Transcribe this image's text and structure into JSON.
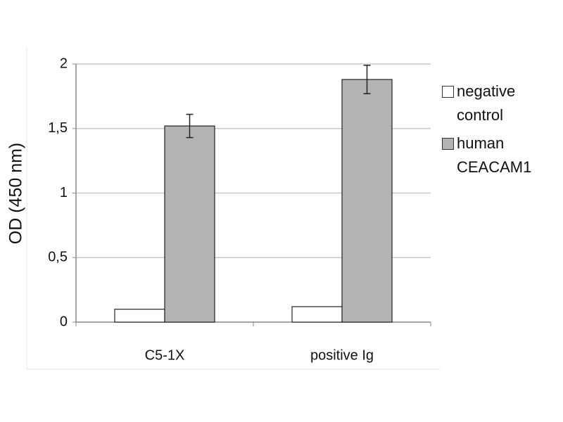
{
  "chart_data": {
    "type": "bar",
    "y_label": "OD (450 nm)",
    "categories": [
      "C5-1X",
      "positive Ig"
    ],
    "series": [
      {
        "name": "negative control",
        "color": "#ffffff",
        "values": [
          0.1,
          0.12
        ]
      },
      {
        "name": "human CEACAM1",
        "color": "#b3b3b3",
        "values": [
          1.52,
          1.88
        ],
        "errors": [
          0.09,
          0.11
        ]
      }
    ],
    "ylim": [
      0,
      2
    ],
    "yticks": [
      0,
      {
        "value": 0.5,
        "label": "0,5"
      },
      1,
      {
        "value": 1.5,
        "label": "1,5"
      },
      2
    ],
    "grid": true,
    "legend": "right"
  }
}
